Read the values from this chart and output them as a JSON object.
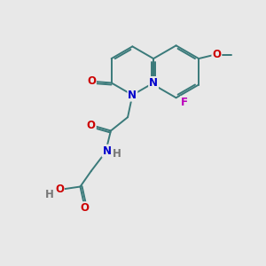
{
  "bg_color": "#e8e8e8",
  "bond_color": "#3a7a7a",
  "bond_width": 1.4,
  "atom_colors": {
    "N": "#0000cc",
    "O": "#cc0000",
    "F": "#bb00bb",
    "H": "#777777",
    "C": "#3a7a7a"
  },
  "font_size": 8.5
}
